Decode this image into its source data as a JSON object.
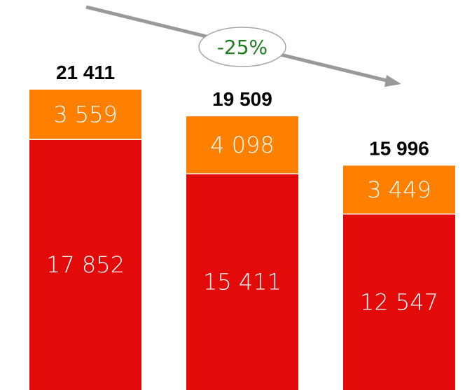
{
  "chart_data": {
    "type": "bar",
    "stacked": true,
    "categories": [
      "",
      "",
      ""
    ],
    "series": [
      {
        "values": [
          17852,
          15411,
          12547
        ]
      },
      {
        "values": [
          3559,
          4098,
          3449
        ]
      }
    ],
    "segment_labels": [
      [
        "17 852",
        "15 411",
        "12 547"
      ],
      [
        "3 559",
        "4 098",
        "3 449"
      ]
    ],
    "totals": [
      21411,
      19509,
      15996
    ],
    "total_labels": [
      "21 411",
      "19 509",
      "15 996"
    ],
    "annotation": {
      "text": "-25%",
      "color": "#1e7b1e"
    },
    "colors": {
      "bottom": "#e30a0a",
      "top": "#ff8000",
      "arrow": "#999999"
    },
    "title": "",
    "xlabel": "",
    "ylabel": "",
    "grid": false,
    "legend": "none"
  }
}
